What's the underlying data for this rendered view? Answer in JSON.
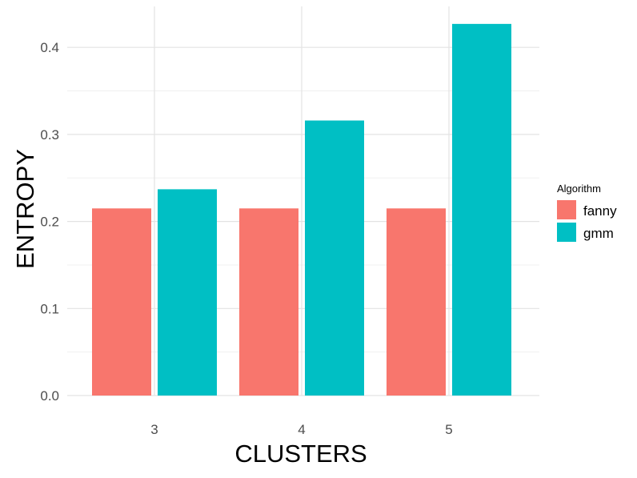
{
  "chart_data": {
    "type": "bar",
    "xlabel": "CLUSTERS",
    "ylabel": "ENTROPY",
    "categories": [
      "3",
      "4",
      "5"
    ],
    "series": [
      {
        "name": "fanny",
        "values": [
          0.215,
          0.215,
          0.215
        ],
        "color": "#F8766D"
      },
      {
        "name": "gmm",
        "values": [
          0.237,
          0.316,
          0.427
        ],
        "color": "#00BFC4"
      }
    ],
    "ylim": [
      0,
      0.44
    ],
    "yticks": [
      "0.0",
      "0.1",
      "0.2",
      "0.3",
      "0.4"
    ],
    "grid": true,
    "legend": {
      "title": "Algorithm",
      "position": "right"
    }
  }
}
